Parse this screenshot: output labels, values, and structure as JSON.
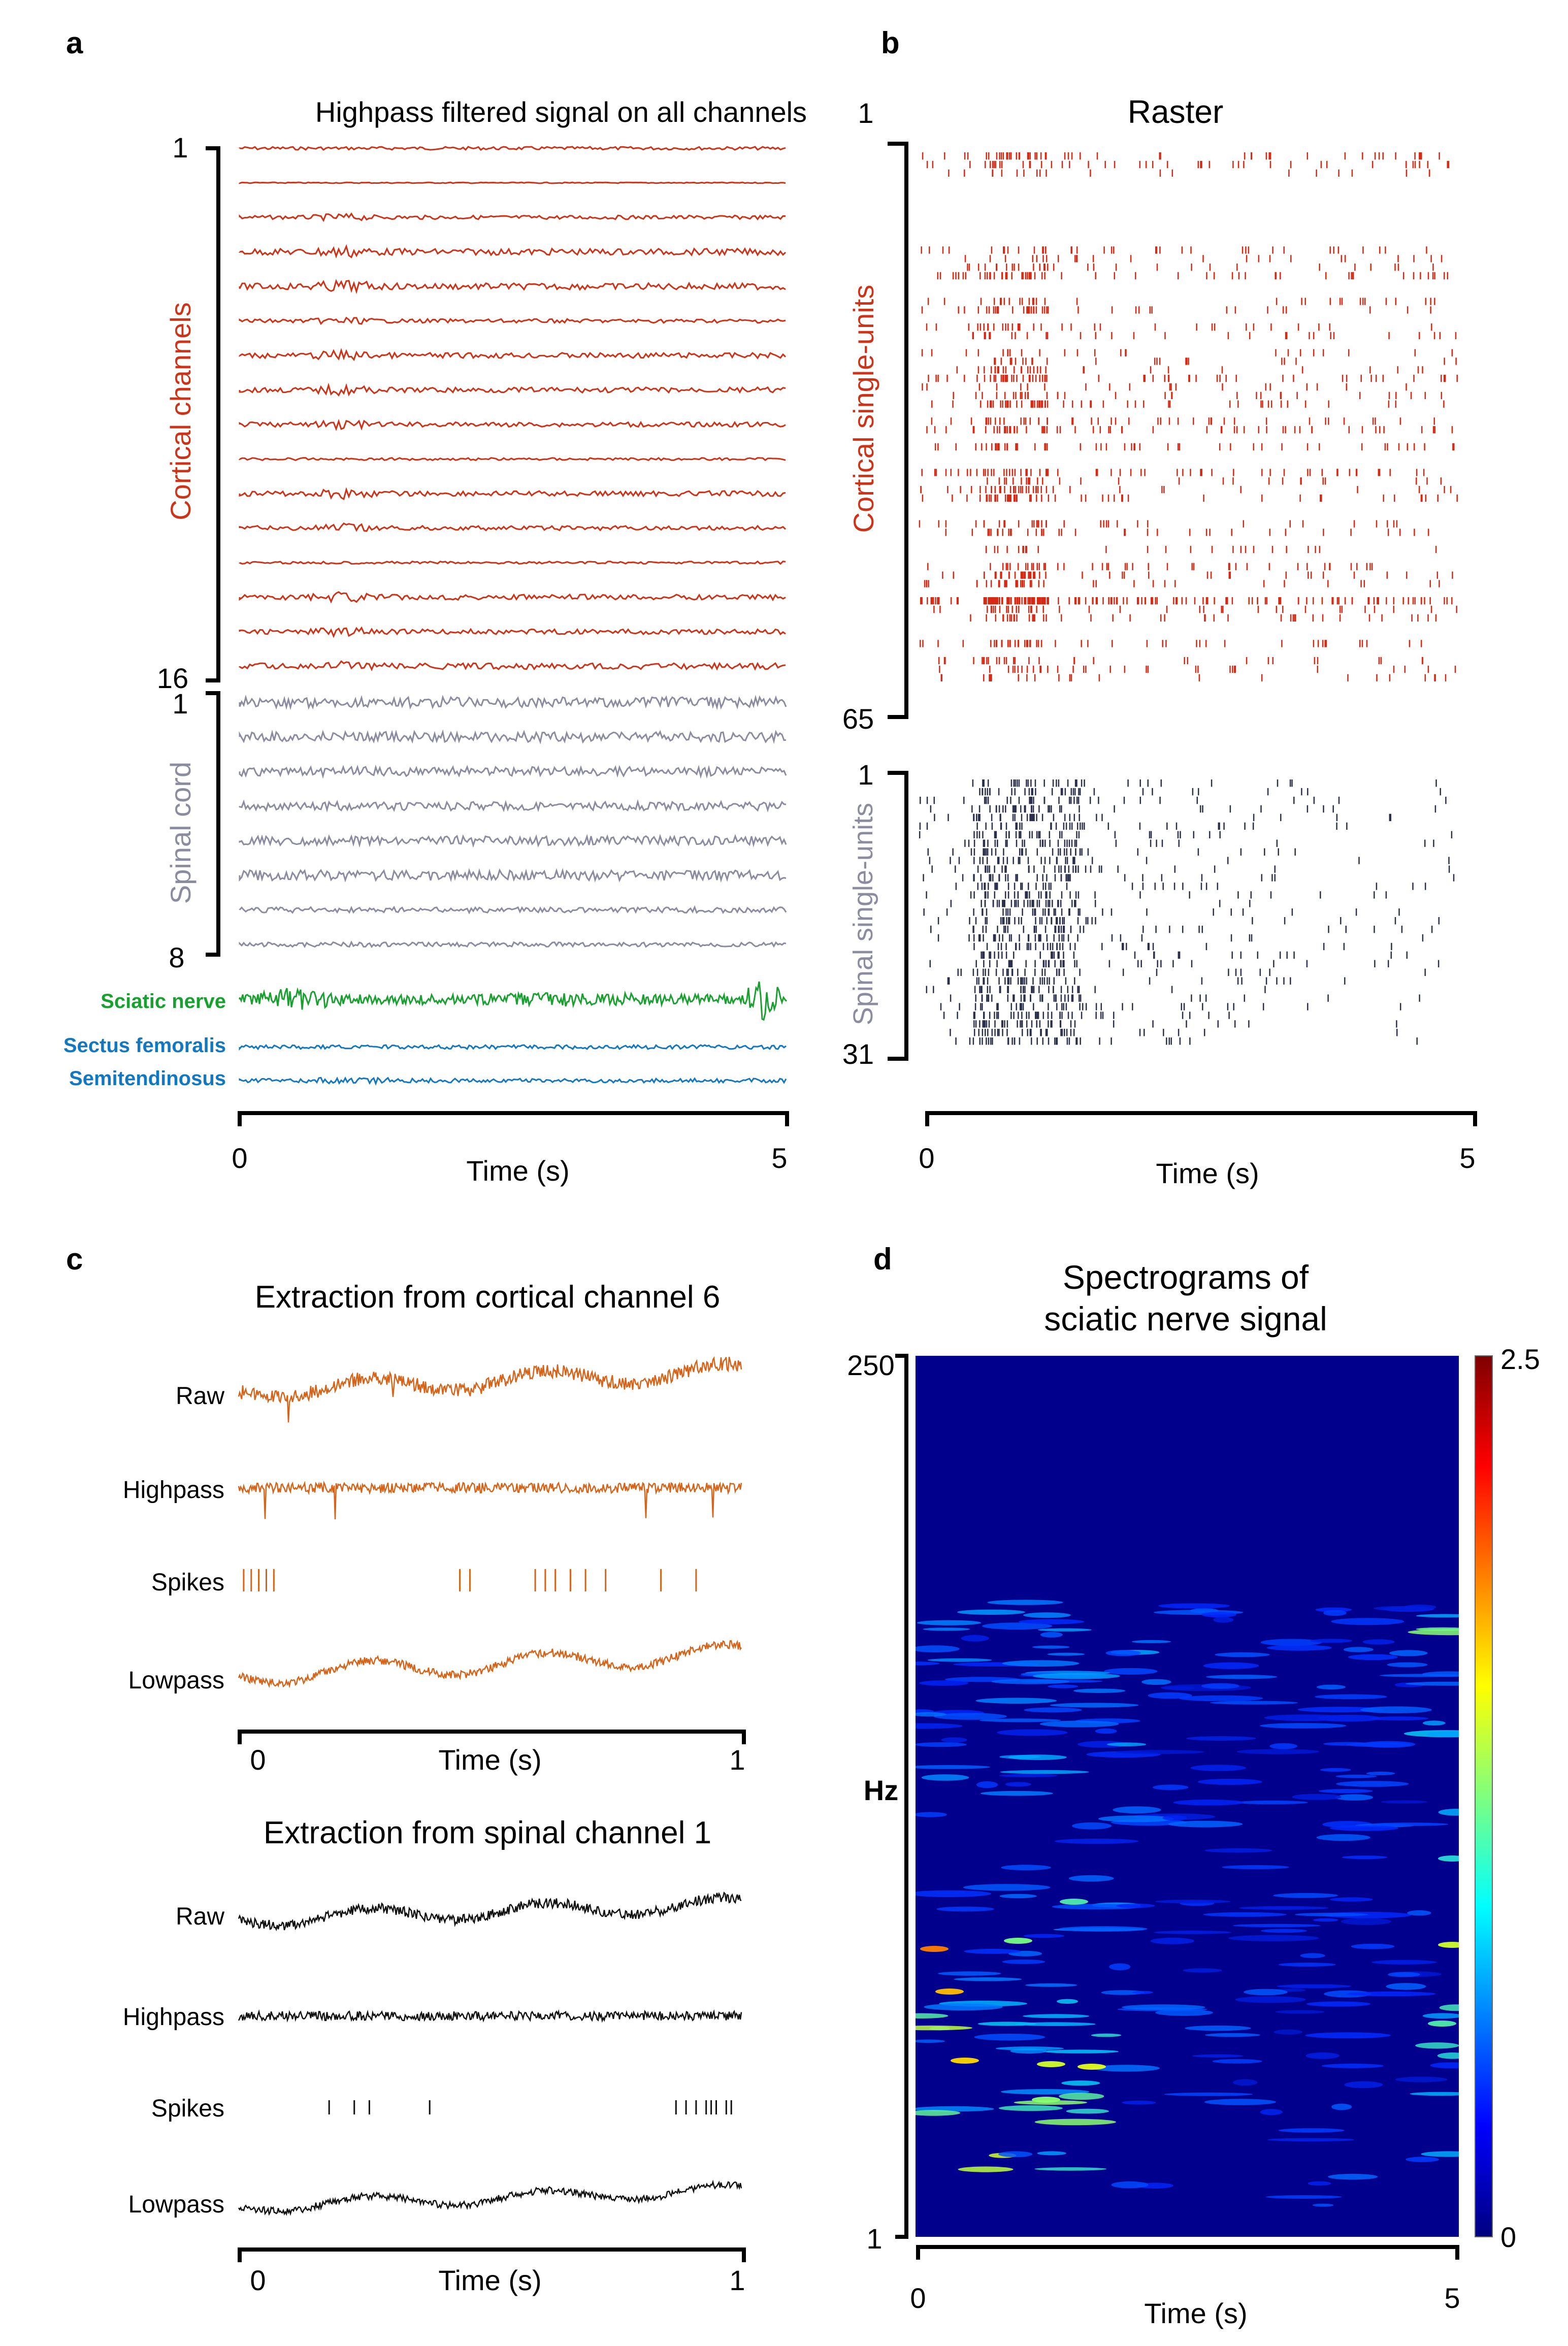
{
  "figure": {
    "panels": {
      "a": "a",
      "b": "b",
      "c": "c",
      "d": "d"
    }
  },
  "chart_data": [
    {
      "panel": "a",
      "type": "line",
      "title": "Highpass filtered signal on all channels",
      "xlabel": "Time (s)",
      "xticks": [
        "0",
        "5"
      ],
      "xlim": [
        0,
        5
      ],
      "cortical": {
        "label": "Cortical channels",
        "start": "1",
        "end": "16",
        "count": 16,
        "color": "#cc3319"
      },
      "spinal": {
        "label": "Spinal cord",
        "start": "1",
        "end": "8",
        "count": 8,
        "color": "#8c8ca0"
      },
      "nerve": {
        "label": "Sciatic nerve",
        "color": "#1aa030"
      },
      "muscles": [
        {
          "label": "Sectus femoralis",
          "color": "#1478c0"
        },
        {
          "label": "Semitendinosus",
          "color": "#1478c0"
        }
      ],
      "cortical_amplitudes": [
        0.45,
        0.15,
        0.55,
        0.9,
        0.9,
        0.55,
        0.75,
        0.75,
        0.65,
        0.35,
        0.75,
        0.65,
        0.35,
        0.75,
        0.7,
        0.85
      ],
      "spinal_amplitudes": [
        1.0,
        1.0,
        0.9,
        0.85,
        0.9,
        1.0,
        0.55,
        0.45
      ]
    },
    {
      "panel": "b",
      "type": "scatter",
      "title": "Raster",
      "xlabel": "Time (s)",
      "xticks": [
        "0",
        "5"
      ],
      "xlim": [
        0,
        5
      ],
      "cortical": {
        "label": "Cortical single-units",
        "start": "1",
        "end": "65",
        "count": 65,
        "color": "#d42a14"
      },
      "spinal": {
        "label": "Spinal single-units",
        "start": "1",
        "end": "31",
        "count": 31,
        "color": "#2a2f4a",
        "label_color": "#8c8ca0"
      }
    },
    {
      "panel": "c",
      "type": "line",
      "xlabel": "Time (s)",
      "xticks": [
        "0",
        "1"
      ],
      "xlim": [
        0,
        1
      ],
      "groups": [
        {
          "title": "Extraction from cortical channel 6",
          "color": "#d4641a",
          "rows": [
            "Raw",
            "Highpass",
            "Spikes",
            "Lowpass"
          ]
        },
        {
          "title": "Extraction from spinal channel 1",
          "color": "#111111",
          "rows": [
            "Raw",
            "Highpass",
            "Spikes",
            "Lowpass"
          ]
        }
      ],
      "cortical_spike_times": [
        0.01,
        0.025,
        0.04,
        0.055,
        0.07,
        0.44,
        0.46,
        0.59,
        0.61,
        0.63,
        0.66,
        0.69,
        0.73,
        0.84,
        0.91
      ],
      "spinal_spike_times": [
        0.18,
        0.23,
        0.26,
        0.38,
        0.87,
        0.89,
        0.91,
        0.93,
        0.94,
        0.95,
        0.97,
        0.98
      ]
    },
    {
      "panel": "d",
      "type": "heatmap",
      "title": [
        "Spectrograms of",
        "sciatic nerve signal"
      ],
      "xlabel": "Time (s)",
      "ylabel": "Hz",
      "xticks": [
        "0",
        "5"
      ],
      "yticks": [
        "250",
        "1"
      ],
      "xlim": [
        0,
        5
      ],
      "ylim": [
        1,
        250
      ],
      "colorbar": {
        "min": "0",
        "max": "2.5"
      }
    }
  ]
}
